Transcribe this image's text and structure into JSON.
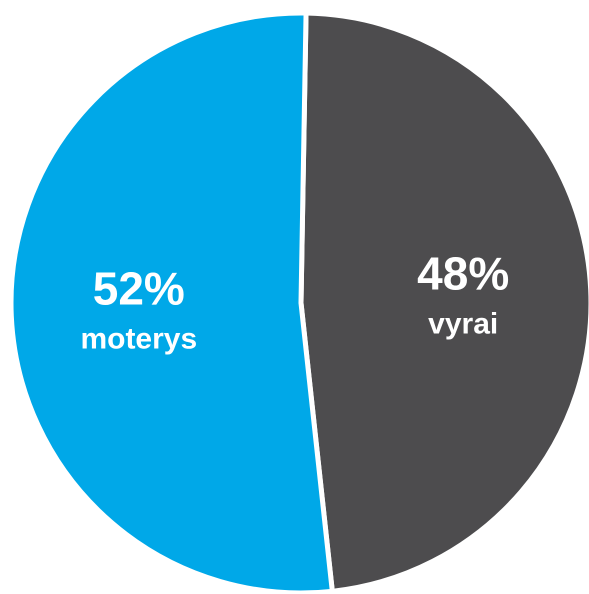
{
  "chart_data": {
    "type": "pie",
    "slices": [
      {
        "label": "vyrai",
        "value": 48,
        "display": "48%",
        "color": "#4d4c4e"
      },
      {
        "label": "moterys",
        "value": 52,
        "display": "52%",
        "color": "#00a8e8"
      }
    ],
    "separator_color": "#ffffff"
  }
}
